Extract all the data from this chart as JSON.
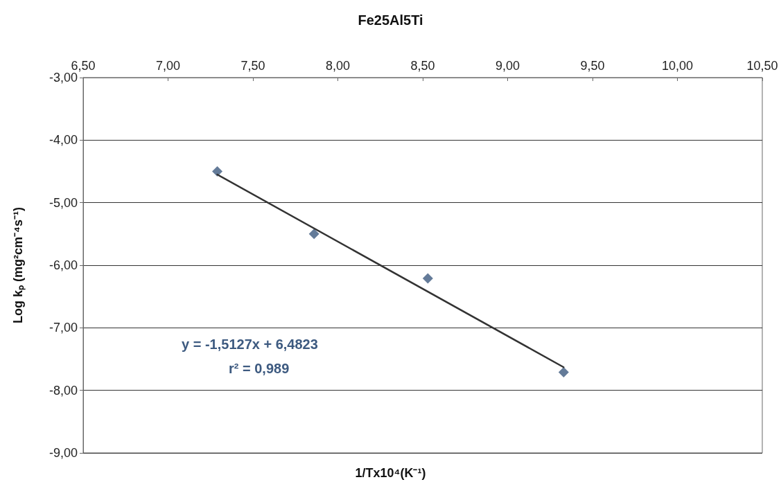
{
  "chart_data": {
    "type": "scatter",
    "title": "Fe25Al5Ti",
    "xlabel": "1/Tx10⁴(K⁻¹)",
    "ylabel": "Log kₚ (mg²cm⁻⁴s⁻¹)",
    "x": [
      7.29,
      7.86,
      8.53,
      9.33
    ],
    "series": [
      {
        "color": "#3d5a80",
        "marker": "diamond",
        "values": [
          -4.5,
          -5.5,
          -6.21,
          -7.71
        ]
      },
      {
        "type": "line",
        "color": "#333333",
        "marker": "none",
        "x": [
          7.29,
          9.33
        ],
        "values": [
          -4.55,
          -7.63
        ]
      }
    ],
    "xlim": [
      6.5,
      10.5
    ],
    "xticks": [
      {
        "value": 6.5,
        "label": "6,50"
      },
      {
        "value": 7,
        "label": "7,00"
      },
      {
        "value": 7.5,
        "label": "7,50"
      },
      {
        "value": 8,
        "label": "8,00"
      },
      {
        "value": 8.5,
        "label": "8,50"
      },
      {
        "value": 9,
        "label": "9,00"
      },
      {
        "value": 9.5,
        "label": "9,50"
      },
      {
        "value": 10,
        "label": "10,00"
      },
      {
        "value": 10.5,
        "label": "10,50"
      }
    ],
    "ylim": [
      -9,
      -3
    ],
    "yticks": [
      {
        "value": -9,
        "label": "-9,00"
      },
      {
        "value": -8,
        "label": "-8,00"
      },
      {
        "value": -7,
        "label": "-7,00"
      },
      {
        "value": -6,
        "label": "-6,00"
      },
      {
        "value": -5,
        "label": "-5,00"
      },
      {
        "value": -4,
        "label": "-4,00"
      },
      {
        "value": -3,
        "label": "-3,00"
      }
    ],
    "grid": "y",
    "annotations": [
      "y = -1,5127x + 6,4823",
      "r² = 0,989"
    ]
  }
}
